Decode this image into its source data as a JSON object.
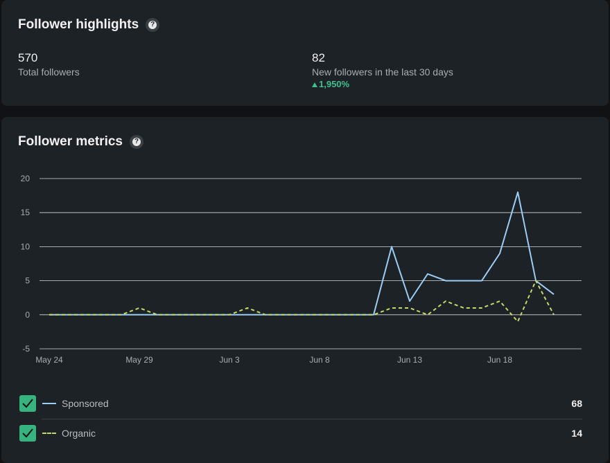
{
  "highlights": {
    "title": "Follower highlights",
    "total_followers": {
      "value": "570",
      "label": "Total followers"
    },
    "new_followers": {
      "value": "82",
      "label": "New followers in the last 30 days",
      "change": "1,950%"
    }
  },
  "metrics": {
    "title": "Follower metrics",
    "legend": [
      {
        "label": "Sponsored",
        "value": "68",
        "color": "#9ccdf6"
      },
      {
        "label": "Organic",
        "value": "14",
        "color": "#c6d86b"
      }
    ]
  },
  "chart_data": {
    "type": "line",
    "x": [
      "May 24",
      "May 25",
      "May 26",
      "May 27",
      "May 28",
      "May 29",
      "May 30",
      "May 31",
      "Jun 1",
      "Jun 2",
      "Jun 3",
      "Jun 4",
      "Jun 5",
      "Jun 6",
      "Jun 7",
      "Jun 8",
      "Jun 9",
      "Jun 10",
      "Jun 11",
      "Jun 12",
      "Jun 13",
      "Jun 14",
      "Jun 15",
      "Jun 16",
      "Jun 17",
      "Jun 18",
      "Jun 19",
      "Jun 20",
      "Jun 21",
      "Jun 22"
    ],
    "x_tick_labels": [
      "May 24",
      "May 29",
      "Jun 3",
      "Jun 8",
      "Jun 13",
      "Jun 18"
    ],
    "y_ticks": [
      20,
      15,
      10,
      5,
      0,
      -5
    ],
    "ylim": [
      -5,
      20
    ],
    "grid": true,
    "series": [
      {
        "name": "Sponsored",
        "style": "solid",
        "color": "#9ccdf6",
        "values": [
          0,
          0,
          0,
          0,
          0,
          0,
          0,
          0,
          0,
          0,
          0,
          0,
          0,
          0,
          0,
          0,
          0,
          0,
          0,
          10,
          2,
          6,
          5,
          5,
          5,
          9,
          18,
          5,
          3,
          null
        ]
      },
      {
        "name": "Organic",
        "style": "dashed",
        "color": "#c6d86b",
        "values": [
          0,
          0,
          0,
          0,
          0,
          1,
          0,
          0,
          0,
          0,
          0,
          1,
          0,
          0,
          0,
          0,
          0,
          0,
          0,
          1,
          1,
          0,
          2,
          1,
          1,
          2,
          -1,
          5,
          0,
          null
        ]
      }
    ]
  }
}
